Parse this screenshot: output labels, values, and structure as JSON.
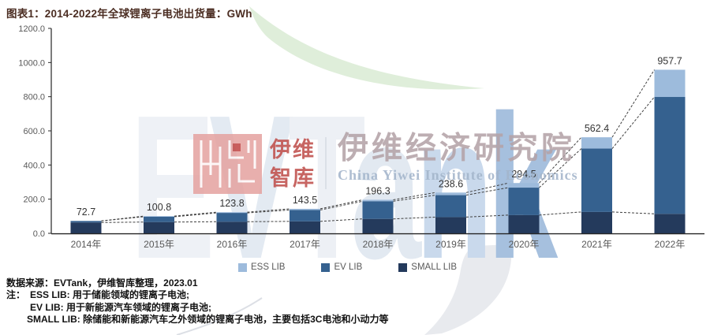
{
  "title": "图表1：2014-2022年全球锂离子电池出货量：GWh",
  "y_axis": {
    "ticks": [
      "1200.0",
      "1000.0",
      "800.0",
      "600.0",
      "400.0",
      "200.0",
      "0.0"
    ]
  },
  "chart_data": {
    "type": "bar",
    "stacked": true,
    "title": "图表1：2014-2022年全球锂离子电池出货量：GWh",
    "unit": "GWh",
    "categories": [
      "2014年",
      "2015年",
      "2016年",
      "2017年",
      "2018年",
      "2019年",
      "2020年",
      "2021年",
      "2022年"
    ],
    "series": [
      {
        "name": "SMALL LIB",
        "color": "#243a5c",
        "values": [
          63.2,
          66.0,
          68.0,
          70.0,
          84.5,
          95.0,
          107.0,
          125.1,
          114.2
        ]
      },
      {
        "name": "EV LIB",
        "color": "#35618f",
        "values": [
          9.0,
          31.0,
          51.6,
          66.5,
          103.5,
          128.6,
          160.5,
          371.0,
          684.2
        ]
      },
      {
        "name": "ESS LIB",
        "color": "#9dbbdc",
        "values": [
          0.5,
          3.8,
          4.2,
          7.0,
          8.3,
          15.0,
          27.0,
          66.3,
          159.3
        ]
      }
    ],
    "totals": [
      72.7,
      100.8,
      123.8,
      143.5,
      196.3,
      238.6,
      294.5,
      562.4,
      957.7
    ],
    "total_labels": [
      "72.7",
      "100.8",
      "123.8",
      "143.5",
      "196.3",
      "238.6",
      "294.5",
      "562.4",
      "957.7"
    ],
    "ylim": [
      0,
      1200
    ],
    "y_ticks": [
      0,
      200,
      400,
      600,
      800,
      1000,
      1200
    ],
    "series_lines_dashed": true,
    "legend_position": "bottom",
    "grid": false,
    "series_values_estimated_from_pixels": true
  },
  "legend": [
    {
      "label": "ESS LIB",
      "color": "#9dbbdc"
    },
    {
      "label": "EV LIB",
      "color": "#35618f"
    },
    {
      "label": "SMALL LIB",
      "color": "#243a5c"
    }
  ],
  "source": {
    "label": "数据来源：",
    "text": "EVTank，伊维智库整理，2023.01"
  },
  "notes": {
    "prefix": "注：",
    "lines": [
      "ESS LIB: 用于储能领域的锂离子电池;",
      "EV LIB: 用于新能源汽车领域的锂离子电池;",
      "SMALL LIB: 除储能和新能源汽车之外领域的锂离子电池，主要包括3C电池和小动力等"
    ]
  },
  "watermark": {
    "brand_text": "EVTank",
    "brand_letter_colors": [
      "#eef1f6",
      "#e3eaf2",
      "#edf0f5",
      "#e2e9f1",
      "#c9d9ec",
      "#a6c0de"
    ],
    "logo_cn_line1": "伊维",
    "logo_cn_line2": "智库",
    "logo_red": "#c0504d",
    "logo_block_pink": "#e5a4a2",
    "institute_cn": "伊维经济研究院",
    "institute_cn_color": "#b4a3a8",
    "institute_en": "China Yiwei Institute of Economics",
    "institute_en_color": "#a3b5cb",
    "swoosh_green": "#dfeeda"
  },
  "style": {
    "axis_color": "#262626",
    "tick_text_color": "#595959",
    "value_label_color": "#333333",
    "series_line_color": "#404040"
  }
}
